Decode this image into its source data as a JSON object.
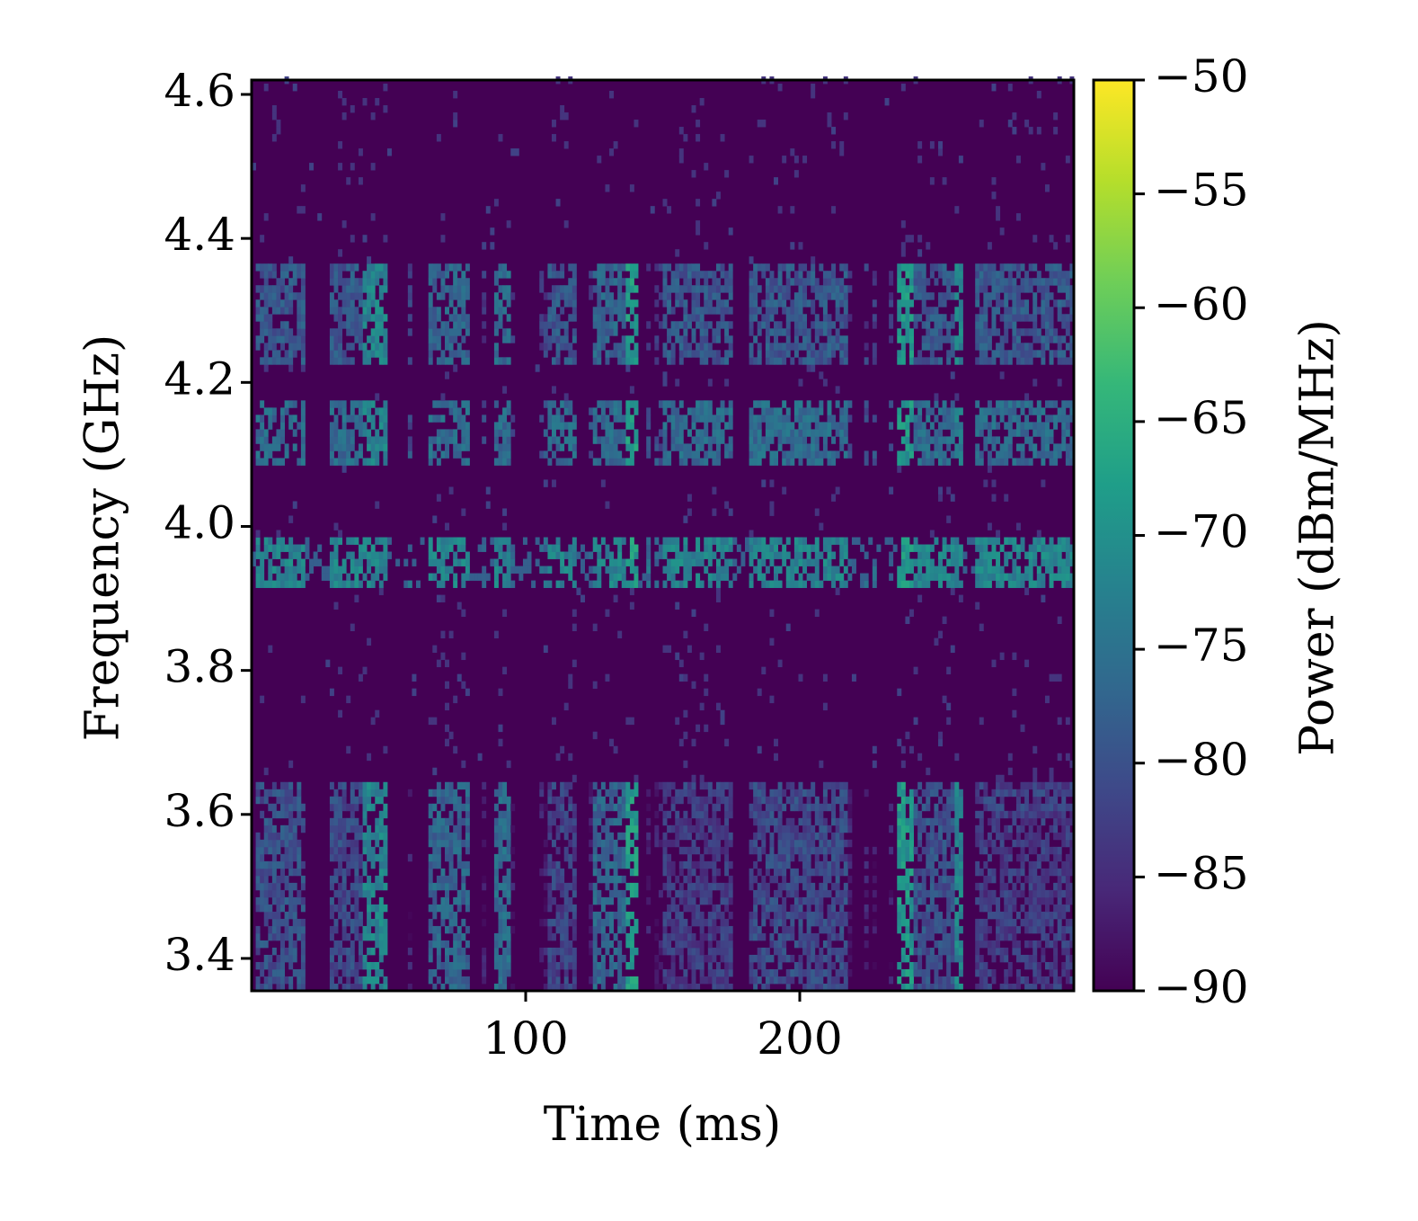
{
  "chart_data": {
    "type": "heatmap",
    "title": "",
    "xlabel": "Time (ms)",
    "ylabel": "Frequency (GHz)",
    "colorbar_label": "Power (dBm/MHz)",
    "colormap": "viridis",
    "colormap_stops": [
      "#440154",
      "#482878",
      "#3e4989",
      "#31688e",
      "#26828e",
      "#1f9e89",
      "#35b779",
      "#6ece58",
      "#b5de2b",
      "#fde725"
    ],
    "xlim": [
      0,
      300
    ],
    "ylim": [
      3.355,
      4.62
    ],
    "clim": [
      -90,
      -50
    ],
    "x_ticks": [
      {
        "value": 100,
        "label": "100"
      },
      {
        "value": 200,
        "label": "200"
      }
    ],
    "y_ticks": [
      {
        "value": 3.4,
        "label": "3.4"
      },
      {
        "value": 3.6,
        "label": "3.6"
      },
      {
        "value": 3.8,
        "label": "3.8"
      },
      {
        "value": 4.0,
        "label": "4.0"
      },
      {
        "value": 4.2,
        "label": "4.2"
      },
      {
        "value": 4.4,
        "label": "4.4"
      },
      {
        "value": 4.6,
        "label": "4.6"
      }
    ],
    "colorbar_ticks": [
      {
        "value": -50,
        "label": "−50"
      },
      {
        "value": -55,
        "label": "−55"
      },
      {
        "value": -60,
        "label": "−60"
      },
      {
        "value": -65,
        "label": "−65"
      },
      {
        "value": -70,
        "label": "−70"
      },
      {
        "value": -75,
        "label": "−75"
      },
      {
        "value": -80,
        "label": "−80"
      },
      {
        "value": -85,
        "label": "−85"
      },
      {
        "value": -90,
        "label": "−90"
      }
    ],
    "background_power": -90,
    "bursts": [
      {
        "t": [
          2,
          20
        ],
        "power": -80
      },
      {
        "t": [
          28,
          45
        ],
        "power": -81
      },
      {
        "t": [
          41,
          50
        ],
        "power": -72
      },
      {
        "t": [
          64,
          79
        ],
        "power": -77
      },
      {
        "t": [
          89,
          94
        ],
        "power": -76
      },
      {
        "t": [
          108,
          118
        ],
        "power": -82
      },
      {
        "t": [
          125,
          140
        ],
        "power": -77
      },
      {
        "t": [
          137,
          141
        ],
        "power": -68
      },
      {
        "t": [
          150,
          175
        ],
        "power": -84
      },
      {
        "t": [
          182,
          217
        ],
        "power": -81
      },
      {
        "t": [
          236,
          241
        ],
        "power": -69
      },
      {
        "t": [
          241,
          256
        ],
        "power": -80
      },
      {
        "t": [
          256,
          259
        ],
        "power": -72
      },
      {
        "t": [
          264,
          300
        ],
        "power": -86
      }
    ],
    "bands": [
      {
        "f": [
          3.915,
          3.985
        ],
        "power": -72,
        "note": "continuous band near 3.95 GHz"
      },
      {
        "f": [
          4.08,
          4.17
        ],
        "power": -76
      },
      {
        "f": [
          4.22,
          4.36
        ],
        "power": -79
      },
      {
        "f": [
          3.58,
          3.645
        ],
        "power": -82
      },
      {
        "f": [
          3.355,
          3.6
        ],
        "power": -83
      }
    ]
  }
}
